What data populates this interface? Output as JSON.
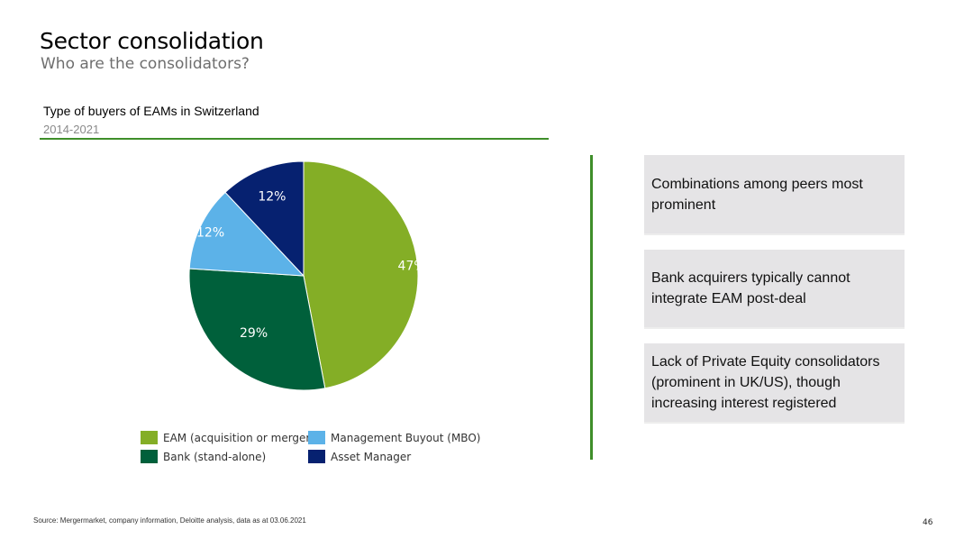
{
  "header": {
    "title": "Sector consolidation",
    "subtitle": "Who are the consolidators?"
  },
  "chart_data": {
    "type": "pie",
    "title": "Type of buyers of EAMs in Switzerland",
    "subtitle": "2014-2021",
    "slices": [
      {
        "name": "EAM (acquisition or merger)",
        "value": 47,
        "label": "47%",
        "color": "#84ae26"
      },
      {
        "name": "Bank (stand-alone)",
        "value": 29,
        "label": "29%",
        "color": "#00603b"
      },
      {
        "name": "Management Buyout (MBO)",
        "value": 12,
        "label": "12%",
        "color": "#5cb2e8"
      },
      {
        "name": "Asset Manager",
        "value": 12,
        "label": "12%",
        "color": "#062170"
      }
    ],
    "legend_position": "bottom"
  },
  "legend": {
    "items": [
      {
        "label": "EAM (acquisition or merger)",
        "color": "#84ae26"
      },
      {
        "label": "Management Buyout (MBO)",
        "color": "#5cb2e8"
      },
      {
        "label": "Bank (stand-alone)",
        "color": "#00603b"
      },
      {
        "label": "Asset Manager",
        "color": "#062170"
      }
    ]
  },
  "callouts": [
    {
      "text": "Combinations among peers most prominent"
    },
    {
      "text": "Bank acquirers typically cannot integrate EAM post-deal"
    },
    {
      "text": "Lack of Private Equity consolidators (prominent in UK/US), though increasing interest registered"
    }
  ],
  "footer": {
    "source": "Source: Mergermarket, company information, Deloitte analysis, data as at 03.06.2021",
    "page_number": "46"
  },
  "colors": {
    "accent_green": "#3f8e2a",
    "callout_background": "#e5e4e6"
  }
}
